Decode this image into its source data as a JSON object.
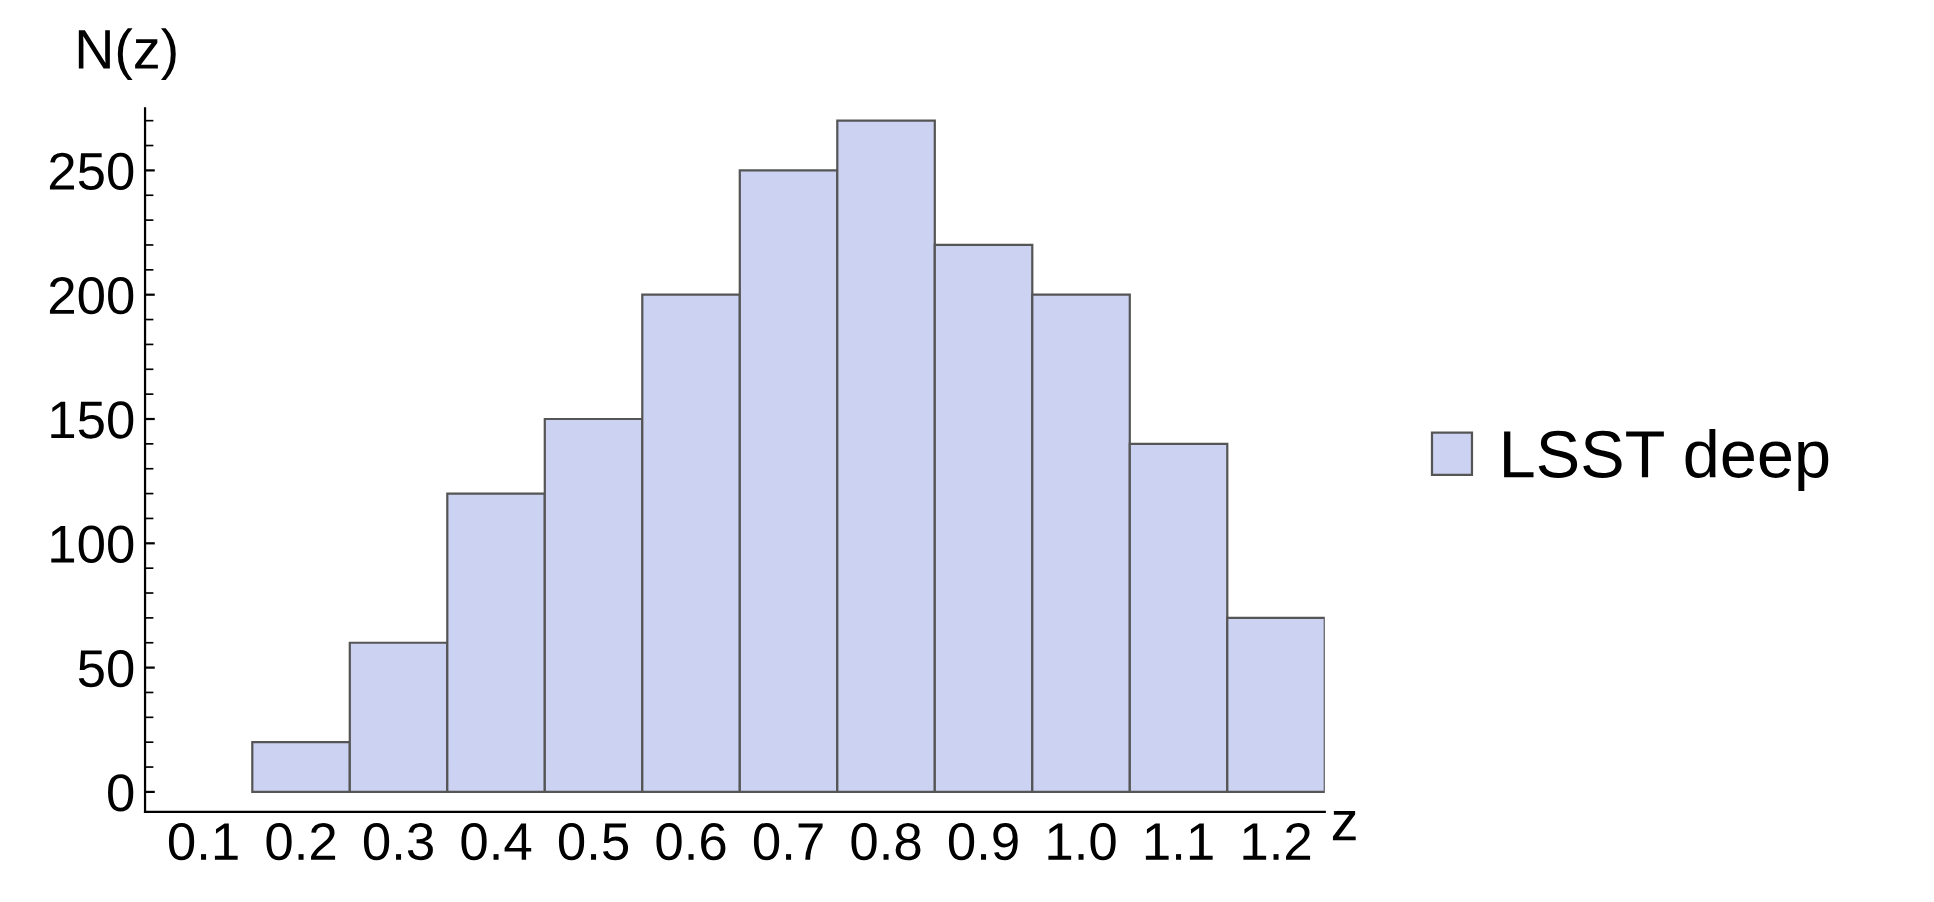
{
  "chart_data": {
    "type": "bar",
    "xlabel": "z",
    "ylabel": "N(z)",
    "categories": [
      "0.1",
      "0.2",
      "0.3",
      "0.4",
      "0.5",
      "0.6",
      "0.7",
      "0.8",
      "0.9",
      "1.0",
      "1.1",
      "1.2"
    ],
    "series": [
      {
        "name": "LSST deep",
        "color": "#ccd3f2",
        "values": [
          null,
          20,
          60,
          120,
          150,
          200,
          250,
          270,
          220,
          200,
          140,
          70
        ]
      }
    ],
    "ylim": [
      -8,
      275
    ],
    "yticks": [
      0,
      50,
      100,
      150,
      200,
      250
    ],
    "grid": false,
    "legend": "right"
  }
}
